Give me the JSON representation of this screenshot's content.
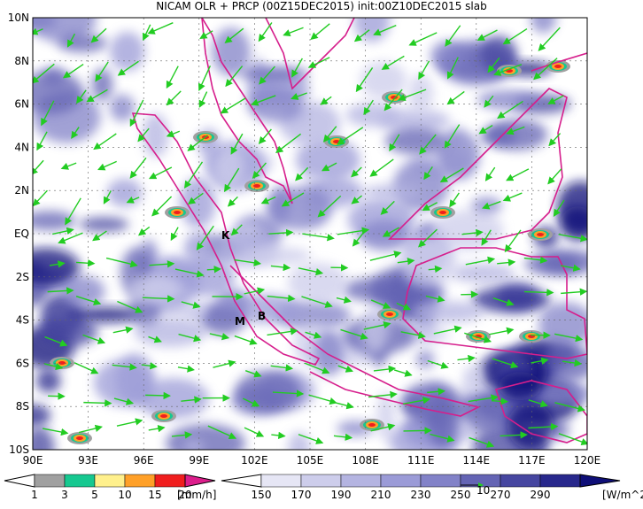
{
  "title": "NICAM OLR + PRCP (00Z15DEC2015) init:00Z10DEC2015 slab",
  "lat_labels": [
    "10N",
    "8N",
    "6N",
    "4N",
    "2N",
    "EQ",
    "2S",
    "4S",
    "6S",
    "8S",
    "10S"
  ],
  "lon_labels": [
    "90E",
    "93E",
    "96E",
    "99E",
    "102E",
    "105E",
    "108E",
    "111E",
    "114E",
    "117E",
    "120E"
  ],
  "place_labels": [
    "K",
    "M",
    "B"
  ],
  "precip_legend": {
    "levels": [
      1,
      3,
      5,
      10,
      15,
      20
    ],
    "unit": "[mm/h]",
    "colors": [
      "#ffffff",
      "#a0a0a0",
      "#16c890",
      "#fff08c",
      "#ffa028",
      "#f01e1e",
      "#dc1e8c"
    ]
  },
  "olr_legend": {
    "levels": [
      150,
      170,
      190,
      210,
      230,
      250,
      270,
      290
    ],
    "unit": "[W/m^2]",
    "colors": [
      "#ffffff",
      "#e6e6f5",
      "#cdcdeb",
      "#b4b4e1",
      "#9b9bd7",
      "#8282c8",
      "#6464b4",
      "#4646a0",
      "#28288c",
      "#0f0f78"
    ]
  },
  "vector_reference": "10"
}
